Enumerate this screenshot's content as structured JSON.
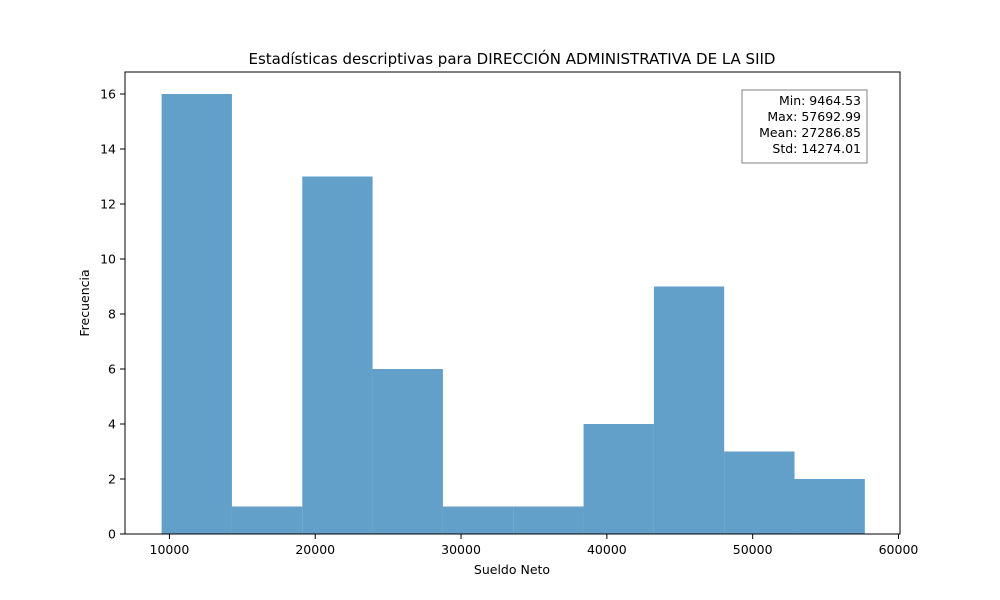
{
  "chart_data": {
    "type": "bar",
    "subtype": "histogram",
    "title": "Estadísticas descriptivas para DIRECCIÓN ADMINISTRATIVA DE LA SIID",
    "xlabel": "Sueldo Neto",
    "ylabel": "Frecuencia",
    "bin_edges": [
      9464.53,
      14287.37,
      19110.22,
      23933.06,
      28755.91,
      33578.76,
      38401.6,
      43224.45,
      48047.29,
      52870.14,
      57692.99
    ],
    "values": [
      16,
      1,
      13,
      6,
      1,
      1,
      4,
      9,
      3,
      2
    ],
    "xlim": [
      6953,
      60104
    ],
    "ylim": [
      0,
      16.8
    ],
    "xticks": [
      10000,
      20000,
      30000,
      40000,
      50000,
      60000
    ],
    "yticks": [
      0,
      2,
      4,
      6,
      8,
      10,
      12,
      14,
      16
    ],
    "bar_color": "#1f77b4",
    "bar_opacity": 0.7,
    "grid": false,
    "stats_box": {
      "placement": "top-right",
      "lines": [
        "Min: 9464.53",
        "Max: 57692.99",
        "Mean: 27286.85",
        "Std: 14274.01"
      ]
    }
  }
}
